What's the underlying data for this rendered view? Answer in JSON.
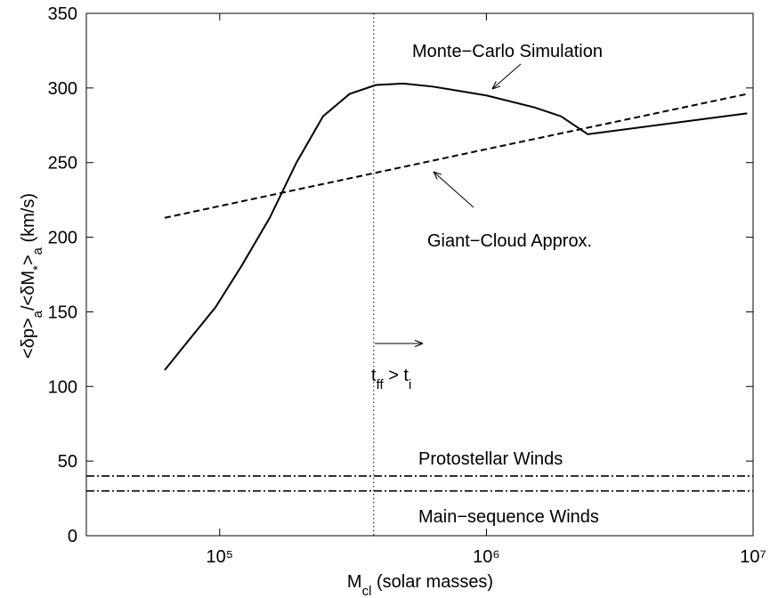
{
  "chart_data": {
    "type": "line",
    "xlog": true,
    "xlim": [
      31623,
      10000000
    ],
    "xticks": [
      {
        "value": 100000,
        "label": "10⁵"
      },
      {
        "value": 1000000,
        "label": "10⁶"
      },
      {
        "value": 10000000,
        "label": "10⁷"
      }
    ],
    "ylim": [
      0,
      350
    ],
    "yticks": [
      0,
      50,
      100,
      150,
      200,
      250,
      300,
      350
    ],
    "xlabel_parts": [
      "M",
      "cl",
      " (solar masses)"
    ],
    "ylabel_parts": [
      "<δp>",
      "a",
      "/<δM",
      "*",
      ">",
      "a",
      " (km/s)"
    ],
    "series": [
      {
        "name": "Monte−Carlo Simulation",
        "color": "#000000",
        "dash": "solid",
        "x": [
          62200,
          76600,
          96400,
          121000,
          154000,
          194000,
          244000,
          307000,
          385000,
          488000,
          625000,
          793000,
          1000000,
          1514000,
          1905000,
          2400000,
          9500000
        ],
        "values": [
          111,
          131,
          153,
          181,
          213,
          250,
          281,
          296,
          302,
          303,
          301,
          298,
          295,
          287,
          281,
          269,
          283
        ]
      },
      {
        "name": "Giant−Cloud Approx.",
        "color": "#000000",
        "dash": "dashed",
        "x": [
          62200,
          1000000,
          9500000
        ],
        "values": [
          213,
          259,
          296
        ]
      }
    ],
    "hlines": [
      {
        "name": "Protostellar Winds",
        "value": 40
      },
      {
        "name": "Main−sequence Winds",
        "value": 30
      }
    ],
    "vline": {
      "value": 378000
    },
    "annotation_parts": [
      "t",
      "ff",
      " > t",
      "i"
    ]
  }
}
